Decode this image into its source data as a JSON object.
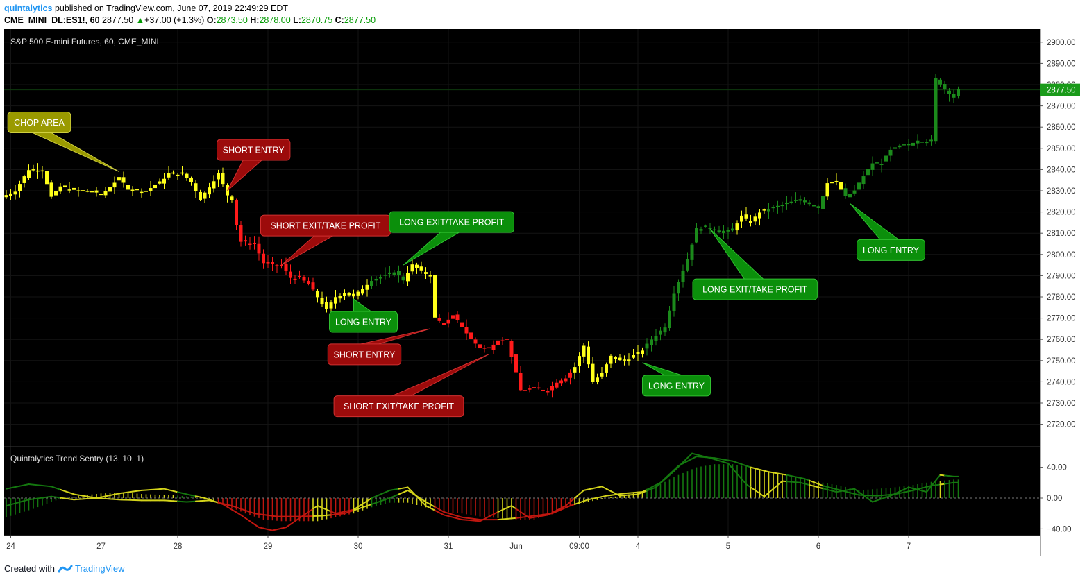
{
  "header": {
    "author": "quintalytics",
    "published": "published on TradingView.com, June 07, 2019 22:49:29 EDT",
    "symbol": "CME_MINI_DL:ES1!, 60",
    "last": "2877.50",
    "change": "+37.00 (+1.3%)",
    "o_label": "O:",
    "o_value": "2873.50",
    "h_label": "H:",
    "h_value": "2878.00",
    "l_label": "L:",
    "l_value": "2870.75",
    "c_label": "C:",
    "c_value": "2877.50"
  },
  "footer": {
    "created_with": "Created with",
    "brand": "TradingView"
  },
  "colors": {
    "background": "#000000",
    "bull": "#1b8a1b",
    "bear": "#ff1a1a",
    "neutral": "#ffff1a",
    "long_callout": "#0b8f0b",
    "short_callout": "#9c0b0b",
    "chop_callout": "#9a9a00",
    "indicator_yellow": "#d4d41a",
    "indicator_red": "#c0160f",
    "indicator_green": "#14780f"
  },
  "chart_data": [
    {
      "type": "candlestick",
      "title": "S&P 500 E-mini Futures, 60, CME_MINI",
      "ylim": [
        2715,
        2905
      ],
      "y_ticks": [
        2720,
        2730,
        2740,
        2750,
        2760,
        2770,
        2780,
        2790,
        2800,
        2810,
        2820,
        2830,
        2840,
        2850,
        2860,
        2870,
        2880,
        2890,
        2900
      ],
      "y_tick_labels": [
        "2720.00",
        "2730.00",
        "2740.00",
        "2750.00",
        "2760.00",
        "2770.00",
        "2780.00",
        "2790.00",
        "2800.00",
        "2810.00",
        "2820.00",
        "2830.00",
        "2840.00",
        "2850.00",
        "2860.00",
        "2870.00",
        "2880.00",
        "2890.00",
        "2900.00"
      ],
      "x_tick_labels": [
        "24",
        "27",
        "28",
        "29",
        "30",
        "31",
        "Jun",
        "09:00",
        "4",
        "5",
        "6",
        "7"
      ],
      "x_tick_bars": [
        1,
        21,
        38,
        58,
        78,
        98,
        113,
        127,
        140,
        160,
        180,
        200
      ],
      "last_price": 2877.5,
      "last_price_label": "2877.50",
      "path_points": [
        [
          0,
          2828
        ],
        [
          2,
          2830
        ],
        [
          5,
          2840
        ],
        [
          8,
          2840
        ],
        [
          10,
          2827
        ],
        [
          12,
          2832
        ],
        [
          15,
          2830
        ],
        [
          18,
          2830
        ],
        [
          21,
          2828
        ],
        [
          23,
          2832
        ],
        [
          25,
          2836
        ],
        [
          27,
          2831
        ],
        [
          29,
          2830
        ],
        [
          31,
          2830
        ],
        [
          34,
          2834
        ],
        [
          36,
          2838
        ],
        [
          39,
          2838
        ],
        [
          41,
          2834
        ],
        [
          43,
          2826
        ],
        [
          45,
          2832
        ],
        [
          47,
          2838
        ],
        [
          49,
          2828
        ],
        [
          50,
          2826
        ],
        [
          51,
          2814
        ],
        [
          52,
          2806
        ],
        [
          55,
          2805
        ],
        [
          57,
          2796
        ],
        [
          59,
          2795
        ],
        [
          61,
          2795
        ],
        [
          63,
          2789
        ],
        [
          65,
          2789
        ],
        [
          67,
          2786
        ],
        [
          69,
          2780
        ],
        [
          71,
          2774
        ],
        [
          73,
          2780
        ],
        [
          75,
          2782
        ],
        [
          77,
          2780
        ],
        [
          79,
          2784
        ],
        [
          81,
          2788
        ],
        [
          84,
          2790
        ],
        [
          86,
          2792
        ],
        [
          88,
          2788
        ],
        [
          90,
          2795
        ],
        [
          92,
          2792
        ],
        [
          94,
          2790
        ],
        [
          95,
          2770
        ],
        [
          97,
          2767
        ],
        [
          99,
          2771
        ],
        [
          101,
          2766
        ],
        [
          103,
          2760
        ],
        [
          105,
          2756
        ],
        [
          107,
          2756
        ],
        [
          109,
          2760
        ],
        [
          111,
          2760
        ],
        [
          112,
          2752
        ],
        [
          114,
          2736
        ],
        [
          117,
          2737
        ],
        [
          120,
          2736
        ],
        [
          122,
          2740
        ],
        [
          124,
          2742
        ],
        [
          126,
          2747
        ],
        [
          128,
          2757
        ],
        [
          130,
          2740
        ],
        [
          132,
          2744
        ],
        [
          134,
          2752
        ],
        [
          136,
          2750
        ],
        [
          138,
          2751
        ],
        [
          141,
          2755
        ],
        [
          143,
          2760
        ],
        [
          146,
          2766
        ],
        [
          148,
          2782
        ],
        [
          151,
          2798
        ],
        [
          153,
          2812
        ],
        [
          155,
          2813
        ],
        [
          157,
          2812
        ],
        [
          159,
          2810
        ],
        [
          161,
          2812
        ],
        [
          163,
          2818
        ],
        [
          165,
          2815
        ],
        [
          167,
          2820
        ],
        [
          170,
          2822
        ],
        [
          173,
          2824
        ],
        [
          176,
          2826
        ],
        [
          178,
          2824
        ],
        [
          180,
          2822
        ],
        [
          182,
          2834
        ],
        [
          184,
          2834
        ],
        [
          186,
          2827
        ],
        [
          188,
          2830
        ],
        [
          190,
          2837
        ],
        [
          192,
          2843
        ],
        [
          194,
          2843
        ],
        [
          196,
          2849
        ],
        [
          198,
          2851
        ],
        [
          200,
          2852
        ],
        [
          202,
          2854
        ],
        [
          205,
          2853
        ],
        [
          206,
          2883
        ],
        [
          208,
          2878
        ],
        [
          210,
          2874
        ],
        [
          211,
          2877.5
        ]
      ],
      "color_zones": [
        [
          0,
          50,
          "neutral"
        ],
        [
          51,
          68,
          "bear"
        ],
        [
          69,
          80,
          "neutral"
        ],
        [
          81,
          88,
          "bull"
        ],
        [
          89,
          95,
          "neutral"
        ],
        [
          96,
          111,
          "bear"
        ],
        [
          112,
          125,
          "bear"
        ],
        [
          126,
          141,
          "neutral"
        ],
        [
          142,
          161,
          "bull"
        ],
        [
          162,
          168,
          "neutral"
        ],
        [
          169,
          181,
          "bull"
        ],
        [
          182,
          185,
          "neutral"
        ],
        [
          186,
          211,
          "bull"
        ]
      ],
      "annotations": [
        {
          "label": "CHOP AREA",
          "kind": "chop",
          "bar": 25,
          "price": 2839
        },
        {
          "label": "SHORT ENTRY",
          "kind": "short",
          "bar": 49,
          "price": 2830
        },
        {
          "label": "SHORT EXIT/TAKE PROFIT",
          "kind": "short",
          "bar": 61,
          "price": 2795
        },
        {
          "label": "LONG EXIT/TAKE PROFIT",
          "kind": "long",
          "bar": 88,
          "price": 2795
        },
        {
          "label": "LONG ENTRY",
          "kind": "long",
          "bar": 77,
          "price": 2779
        },
        {
          "label": "SHORT ENTRY",
          "kind": "short",
          "bar": 94,
          "price": 2765
        },
        {
          "label": "SHORT EXIT/TAKE PROFIT",
          "kind": "short",
          "bar": 107,
          "price": 2753
        },
        {
          "label": "LONG ENTRY",
          "kind": "long",
          "bar": 141,
          "price": 2749
        },
        {
          "label": "LONG EXIT/TAKE PROFIT",
          "kind": "long",
          "bar": 156,
          "price": 2812
        },
        {
          "label": "LONG ENTRY",
          "kind": "long",
          "bar": 187,
          "price": 2824
        }
      ]
    },
    {
      "type": "histogram",
      "title": "Quintalytics Trend Sentry (13, 10, 1)",
      "ylim": [
        -50,
        62
      ],
      "y_ticks": [
        40,
        0,
        -40
      ],
      "y_tick_labels": [
        "40.00",
        "0.00",
        "−40.00"
      ],
      "hist_points": [
        [
          0,
          -25
        ],
        [
          6,
          -14
        ],
        [
          11,
          -3
        ],
        [
          16,
          3
        ],
        [
          21,
          6
        ],
        [
          26,
          7
        ],
        [
          31,
          5
        ],
        [
          36,
          4
        ],
        [
          41,
          2
        ],
        [
          45,
          -3
        ],
        [
          49,
          -10
        ],
        [
          53,
          -20
        ],
        [
          57,
          -28
        ],
        [
          61,
          -30
        ],
        [
          65,
          -30
        ],
        [
          69,
          -30
        ],
        [
          73,
          -25
        ],
        [
          77,
          -20
        ],
        [
          81,
          -12
        ],
        [
          85,
          -6
        ],
        [
          89,
          -6
        ],
        [
          93,
          -12
        ],
        [
          97,
          -18
        ],
        [
          101,
          -20
        ],
        [
          105,
          -24
        ],
        [
          109,
          -26
        ],
        [
          113,
          -28
        ],
        [
          117,
          -28
        ],
        [
          121,
          -20
        ],
        [
          125,
          -10
        ],
        [
          129,
          -5
        ],
        [
          133,
          0
        ],
        [
          137,
          4
        ],
        [
          141,
          8
        ],
        [
          145,
          18
        ],
        [
          149,
          30
        ],
        [
          153,
          40
        ],
        [
          157,
          44
        ],
        [
          161,
          44
        ],
        [
          165,
          40
        ],
        [
          169,
          34
        ],
        [
          173,
          30
        ],
        [
          177,
          25
        ],
        [
          181,
          20
        ],
        [
          185,
          16
        ],
        [
          189,
          10
        ],
        [
          193,
          12
        ],
        [
          197,
          14
        ],
        [
          201,
          17
        ],
        [
          205,
          21
        ],
        [
          210,
          24
        ]
      ],
      "hist_zones": [
        [
          0,
          11,
          "bull"
        ],
        [
          12,
          37,
          "neutral"
        ],
        [
          38,
          41,
          "bull"
        ],
        [
          42,
          46,
          "neutral"
        ],
        [
          47,
          67,
          "bear"
        ],
        [
          68,
          71,
          "neutral"
        ],
        [
          72,
          76,
          "bear"
        ],
        [
          77,
          80,
          "neutral"
        ],
        [
          81,
          86,
          "bull"
        ],
        [
          87,
          94,
          "neutral"
        ],
        [
          95,
          108,
          "bear"
        ],
        [
          109,
          112,
          "neutral"
        ],
        [
          113,
          125,
          "bear"
        ],
        [
          126,
          141,
          "neutral"
        ],
        [
          142,
          164,
          "bull"
        ],
        [
          165,
          172,
          "neutral"
        ],
        [
          173,
          177,
          "bull"
        ],
        [
          178,
          180,
          "neutral"
        ],
        [
          181,
          188,
          "bull"
        ],
        [
          189,
          206,
          "bull"
        ],
        [
          207,
          207,
          "neutral"
        ],
        [
          208,
          211,
          "bull"
        ]
      ],
      "fast_line": [
        [
          0,
          -10
        ],
        [
          5,
          -2
        ],
        [
          10,
          2
        ],
        [
          15,
          -2
        ],
        [
          20,
          0
        ],
        [
          25,
          6
        ],
        [
          30,
          10
        ],
        [
          35,
          12
        ],
        [
          40,
          5
        ],
        [
          44,
          0
        ],
        [
          48,
          -8
        ],
        [
          52,
          -22
        ],
        [
          56,
          -38
        ],
        [
          59,
          -42
        ],
        [
          62,
          -38
        ],
        [
          65,
          -26
        ],
        [
          69,
          -10
        ],
        [
          73,
          -20
        ],
        [
          77,
          -15
        ],
        [
          81,
          0
        ],
        [
          85,
          10
        ],
        [
          89,
          14
        ],
        [
          93,
          -10
        ],
        [
          97,
          -22
        ],
        [
          101,
          -28
        ],
        [
          105,
          -30
        ],
        [
          109,
          -18
        ],
        [
          112,
          -10
        ],
        [
          116,
          -26
        ],
        [
          120,
          -22
        ],
        [
          124,
          -10
        ],
        [
          128,
          10
        ],
        [
          132,
          15
        ],
        [
          136,
          3
        ],
        [
          140,
          5
        ],
        [
          144,
          14
        ],
        [
          148,
          35
        ],
        [
          152,
          58
        ],
        [
          156,
          52
        ],
        [
          160,
          45
        ],
        [
          164,
          18
        ],
        [
          168,
          2
        ],
        [
          172,
          22
        ],
        [
          176,
          20
        ],
        [
          180,
          14
        ],
        [
          184,
          8
        ],
        [
          188,
          12
        ],
        [
          192,
          -5
        ],
        [
          196,
          3
        ],
        [
          200,
          14
        ],
        [
          204,
          8
        ],
        [
          207,
          30
        ],
        [
          210,
          28
        ]
      ],
      "slow_line": [
        [
          0,
          12
        ],
        [
          5,
          18
        ],
        [
          10,
          15
        ],
        [
          15,
          5
        ],
        [
          20,
          0
        ],
        [
          25,
          -2
        ],
        [
          30,
          -3
        ],
        [
          35,
          -3
        ],
        [
          40,
          -5
        ],
        [
          45,
          -3
        ],
        [
          50,
          -10
        ],
        [
          55,
          -20
        ],
        [
          60,
          -24
        ],
        [
          65,
          -24
        ],
        [
          70,
          -23
        ],
        [
          75,
          -20
        ],
        [
          80,
          -10
        ],
        [
          85,
          0
        ],
        [
          89,
          10
        ],
        [
          93,
          -5
        ],
        [
          97,
          -18
        ],
        [
          101,
          -25
        ],
        [
          105,
          -28
        ],
        [
          109,
          -28
        ],
        [
          113,
          -26
        ],
        [
          117,
          -23
        ],
        [
          121,
          -20
        ],
        [
          125,
          -10
        ],
        [
          129,
          -2
        ],
        [
          133,
          3
        ],
        [
          137,
          6
        ],
        [
          141,
          8
        ],
        [
          145,
          20
        ],
        [
          149,
          42
        ],
        [
          153,
          54
        ],
        [
          157,
          52
        ],
        [
          161,
          48
        ],
        [
          165,
          40
        ],
        [
          169,
          34
        ],
        [
          173,
          30
        ],
        [
          177,
          25
        ],
        [
          181,
          16
        ],
        [
          185,
          10
        ],
        [
          189,
          4
        ],
        [
          193,
          3
        ],
        [
          197,
          5
        ],
        [
          201,
          10
        ],
        [
          205,
          16
        ],
        [
          210,
          20
        ]
      ]
    }
  ]
}
